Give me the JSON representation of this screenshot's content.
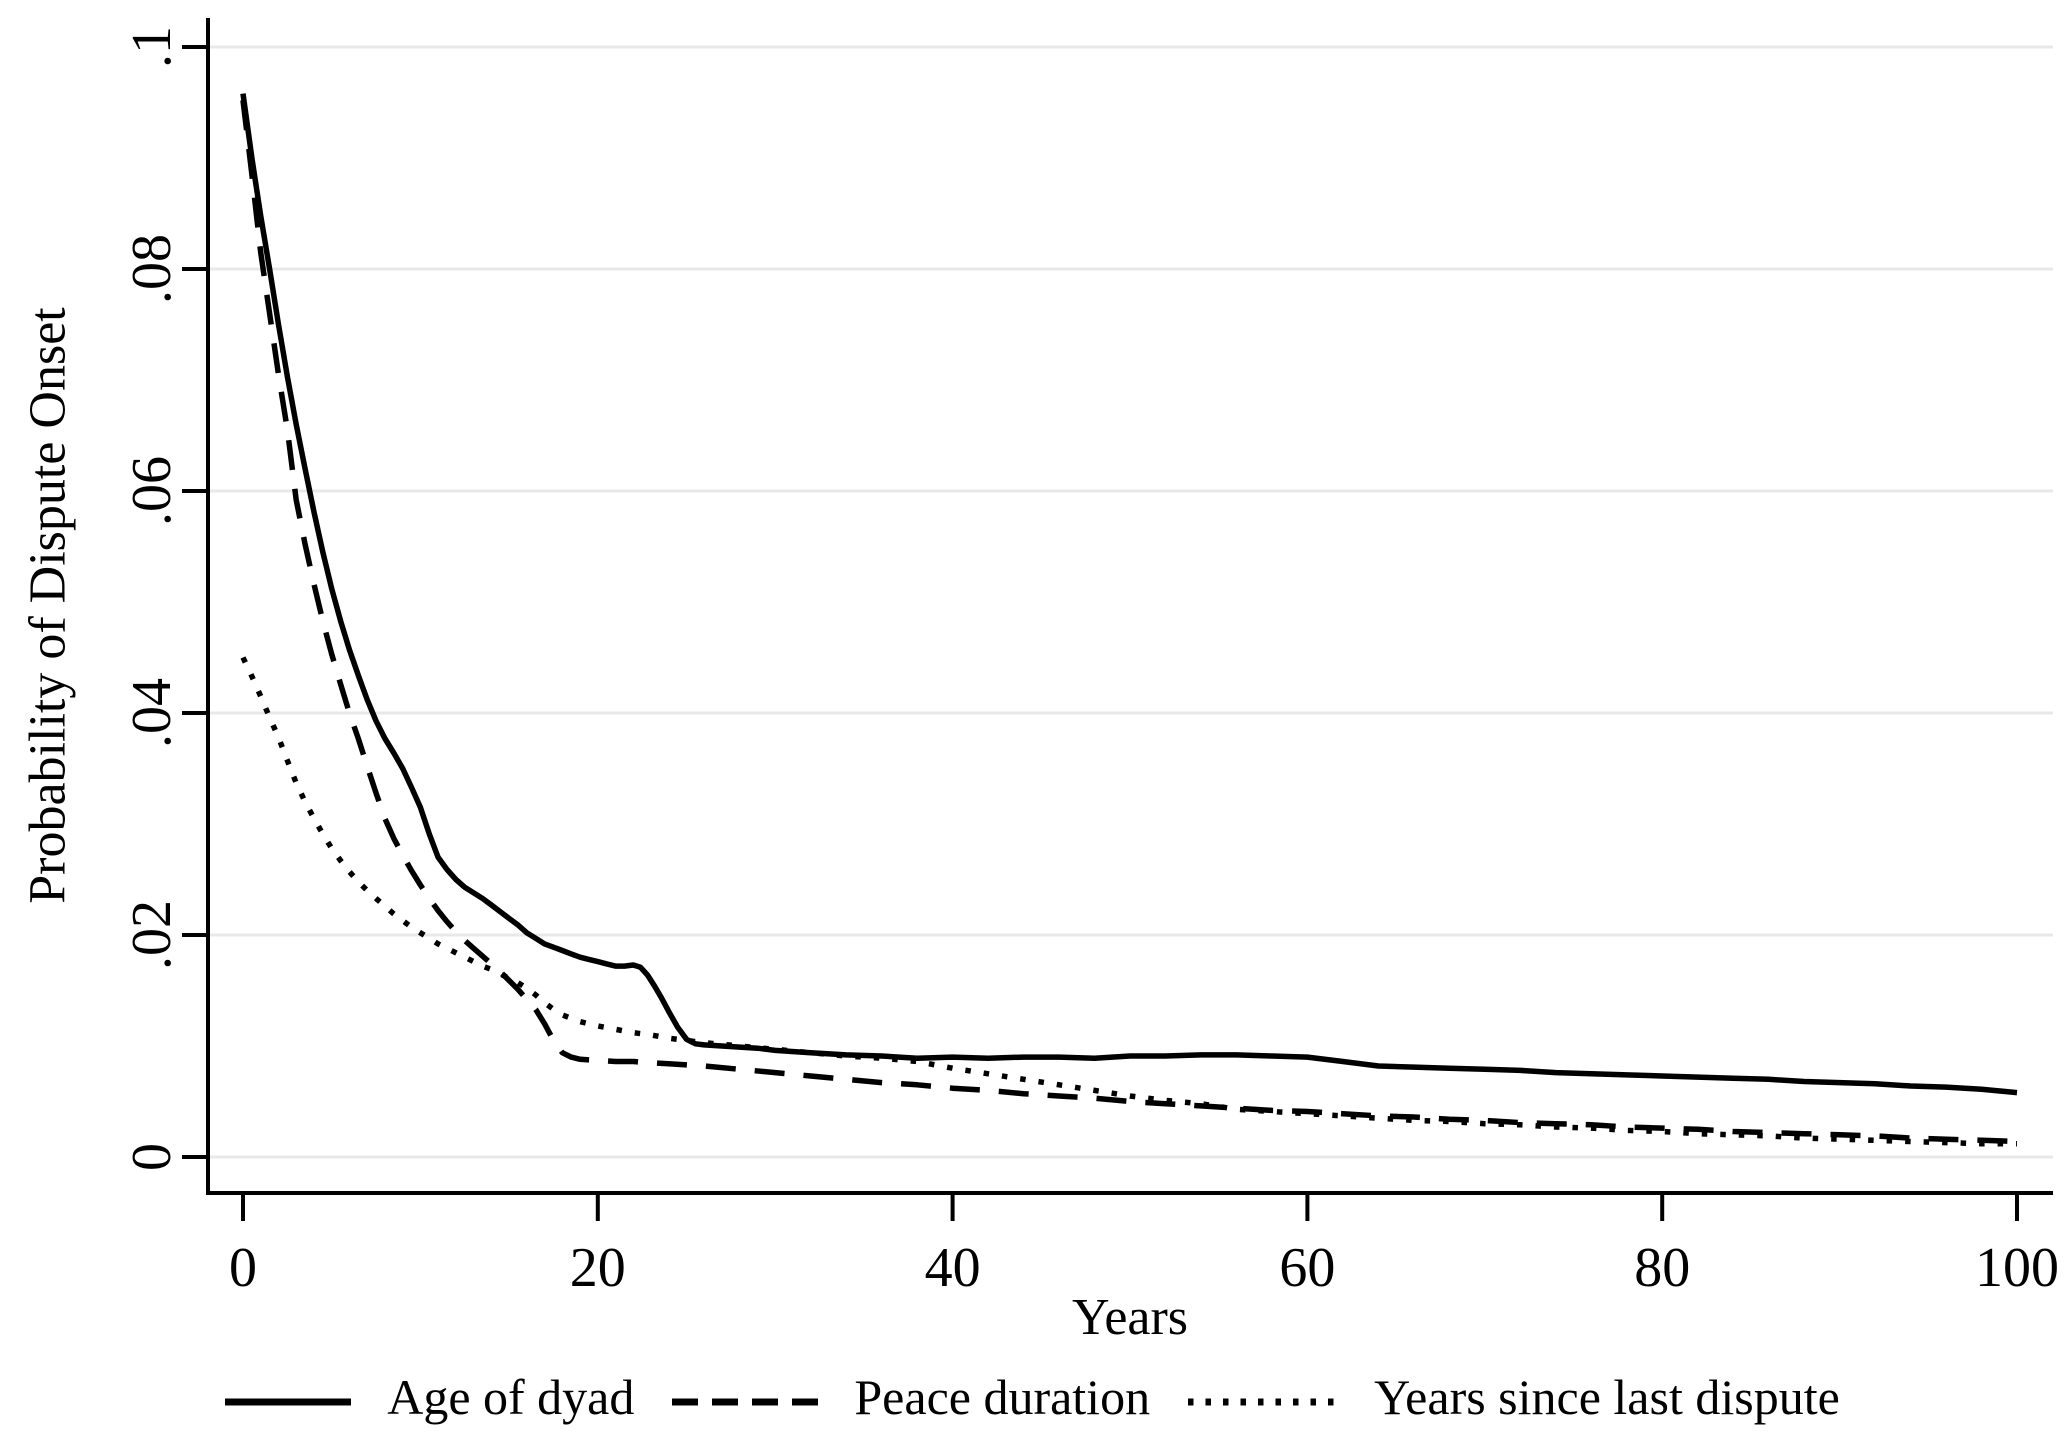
{
  "figure": {
    "background_color": "#ffffff",
    "axis_color": "#000000",
    "gridline_color": "#e8e8e8",
    "line_color": "#000000"
  },
  "chart_data": {
    "type": "line",
    "title": "",
    "xlabel": "Years",
    "ylabel": "Probability of Dispute Onset",
    "xlim": [
      0,
      100
    ],
    "ylim": [
      0,
      0.1
    ],
    "x_ticks": [
      "0",
      "20",
      "40",
      "60",
      "80",
      "100"
    ],
    "y_ticks": [
      "0",
      ".02",
      ".04",
      ".06",
      ".08",
      ".1"
    ],
    "grid": "horizontal-only",
    "frame": "left-and-bottom-axes-only",
    "y_tick_label_rotation": 90,
    "legend_position": "bottom-center",
    "series": [
      {
        "name": "Age of dyad",
        "line_style": "solid",
        "points": [
          [
            0,
            0.0958
          ],
          [
            0.5,
            0.09
          ],
          [
            1,
            0.0848
          ],
          [
            1.5,
            0.08
          ],
          [
            2,
            0.075
          ],
          [
            2.5,
            0.0703
          ],
          [
            3,
            0.066
          ],
          [
            3.5,
            0.062
          ],
          [
            4,
            0.0581
          ],
          [
            4.5,
            0.0545
          ],
          [
            5,
            0.0512
          ],
          [
            5.5,
            0.0483
          ],
          [
            6,
            0.0457
          ],
          [
            6.5,
            0.0434
          ],
          [
            7,
            0.0412
          ],
          [
            7.5,
            0.0393
          ],
          [
            8,
            0.0377
          ],
          [
            8.5,
            0.0364
          ],
          [
            9,
            0.035
          ],
          [
            9.5,
            0.0333
          ],
          [
            10,
            0.0315
          ],
          [
            10.5,
            0.0291
          ],
          [
            11,
            0.027
          ],
          [
            11.5,
            0.0259
          ],
          [
            12,
            0.025
          ],
          [
            12.5,
            0.0243
          ],
          [
            13,
            0.0238
          ],
          [
            13.5,
            0.0233
          ],
          [
            14,
            0.0227
          ],
          [
            14.5,
            0.0221
          ],
          [
            15,
            0.0215
          ],
          [
            15.5,
            0.0209
          ],
          [
            16,
            0.0202
          ],
          [
            16.5,
            0.0197
          ],
          [
            17,
            0.0192
          ],
          [
            17.5,
            0.0189
          ],
          [
            18,
            0.0186
          ],
          [
            18.5,
            0.0183
          ],
          [
            19,
            0.018
          ],
          [
            19.5,
            0.0178
          ],
          [
            20,
            0.0176
          ],
          [
            20.5,
            0.0174
          ],
          [
            21,
            0.0172
          ],
          [
            21.5,
            0.0172
          ],
          [
            22,
            0.0173
          ],
          [
            22.4,
            0.0171
          ],
          [
            22.8,
            0.0164
          ],
          [
            23.2,
            0.0154
          ],
          [
            23.6,
            0.0143
          ],
          [
            24,
            0.0131
          ],
          [
            24.5,
            0.0117
          ],
          [
            25,
            0.0106
          ],
          [
            25.5,
            0.0102
          ],
          [
            26,
            0.0101
          ],
          [
            27,
            0.01
          ],
          [
            28,
            0.0099
          ],
          [
            29,
            0.0098
          ],
          [
            30,
            0.0096
          ],
          [
            32,
            0.0094
          ],
          [
            34,
            0.0092
          ],
          [
            36,
            0.0091
          ],
          [
            38,
            0.0089
          ],
          [
            40,
            0.009
          ],
          [
            42,
            0.0089
          ],
          [
            44,
            0.009
          ],
          [
            46,
            0.009
          ],
          [
            48,
            0.0089
          ],
          [
            50,
            0.0091
          ],
          [
            52,
            0.0091
          ],
          [
            54,
            0.0092
          ],
          [
            56,
            0.0092
          ],
          [
            58,
            0.0091
          ],
          [
            60,
            0.009
          ],
          [
            62,
            0.0086
          ],
          [
            64,
            0.0082
          ],
          [
            66,
            0.0081
          ],
          [
            68,
            0.008
          ],
          [
            70,
            0.0079
          ],
          [
            72,
            0.0078
          ],
          [
            74,
            0.0076
          ],
          [
            76,
            0.0075
          ],
          [
            78,
            0.0074
          ],
          [
            80,
            0.0073
          ],
          [
            82,
            0.0072
          ],
          [
            84,
            0.0071
          ],
          [
            86,
            0.007
          ],
          [
            88,
            0.0068
          ],
          [
            90,
            0.0067
          ],
          [
            92,
            0.0066
          ],
          [
            94,
            0.0064
          ],
          [
            96,
            0.0063
          ],
          [
            98,
            0.0061
          ],
          [
            100,
            0.0058
          ]
        ]
      },
      {
        "name": "Peace duration",
        "line_style": "dashed",
        "points": [
          [
            0,
            0.0952
          ],
          [
            0.5,
            0.0885
          ],
          [
            1,
            0.0815
          ],
          [
            1.5,
            0.076
          ],
          [
            2,
            0.0705
          ],
          [
            2.5,
            0.0655
          ],
          [
            3,
            0.0592
          ],
          [
            3.5,
            0.0552
          ],
          [
            4,
            0.0516
          ],
          [
            4.5,
            0.0483
          ],
          [
            5,
            0.0453
          ],
          [
            5.5,
            0.0426
          ],
          [
            6,
            0.04
          ],
          [
            6.5,
            0.0377
          ],
          [
            7,
            0.0352
          ],
          [
            7.5,
            0.0328
          ],
          [
            8,
            0.0305
          ],
          [
            8.5,
            0.0287
          ],
          [
            9,
            0.0272
          ],
          [
            9.5,
            0.0258
          ],
          [
            10,
            0.0245
          ],
          [
            10.5,
            0.0233
          ],
          [
            11,
            0.0222
          ],
          [
            11.5,
            0.0212
          ],
          [
            12,
            0.0203
          ],
          [
            12.5,
            0.0195
          ],
          [
            13,
            0.0188
          ],
          [
            13.5,
            0.0181
          ],
          [
            14,
            0.0174
          ],
          [
            14.5,
            0.0167
          ],
          [
            15,
            0.0159
          ],
          [
            15.5,
            0.0151
          ],
          [
            16,
            0.0142
          ],
          [
            16.5,
            0.0133
          ],
          [
            17,
            0.012
          ],
          [
            17.5,
            0.0105
          ],
          [
            18,
            0.0094
          ],
          [
            18.5,
            0.009
          ],
          [
            19,
            0.0088
          ],
          [
            20,
            0.0087
          ],
          [
            21,
            0.0086
          ],
          [
            22,
            0.0086
          ],
          [
            23,
            0.0085
          ],
          [
            24,
            0.0084
          ],
          [
            25,
            0.0083
          ],
          [
            26,
            0.0082
          ],
          [
            28,
            0.0079
          ],
          [
            30,
            0.0076
          ],
          [
            32,
            0.0073
          ],
          [
            34,
            0.007
          ],
          [
            36,
            0.0067
          ],
          [
            38,
            0.0065
          ],
          [
            40,
            0.0062
          ],
          [
            42,
            0.006
          ],
          [
            44,
            0.0057
          ],
          [
            46,
            0.0055
          ],
          [
            48,
            0.0053
          ],
          [
            50,
            0.005
          ],
          [
            52,
            0.0048
          ],
          [
            54,
            0.0046
          ],
          [
            56,
            0.0044
          ],
          [
            58,
            0.0042
          ],
          [
            60,
            0.0041
          ],
          [
            62,
            0.0039
          ],
          [
            64,
            0.0037
          ],
          [
            66,
            0.0036
          ],
          [
            68,
            0.0034
          ],
          [
            70,
            0.0033
          ],
          [
            72,
            0.0031
          ],
          [
            74,
            0.003
          ],
          [
            76,
            0.0029
          ],
          [
            78,
            0.0027
          ],
          [
            80,
            0.0026
          ],
          [
            82,
            0.0025
          ],
          [
            84,
            0.0023
          ],
          [
            86,
            0.0022
          ],
          [
            88,
            0.0021
          ],
          [
            90,
            0.002
          ],
          [
            92,
            0.0019
          ],
          [
            94,
            0.0017
          ],
          [
            96,
            0.0016
          ],
          [
            98,
            0.0015
          ],
          [
            100,
            0.0014
          ]
        ]
      },
      {
        "name": "Years since last dispute",
        "line_style": "dotted",
        "points": [
          [
            0,
            0.045
          ],
          [
            0.5,
            0.0433
          ],
          [
            1,
            0.0415
          ],
          [
            1.5,
            0.0396
          ],
          [
            2,
            0.0378
          ],
          [
            2.5,
            0.0357
          ],
          [
            3,
            0.0337
          ],
          [
            3.5,
            0.032
          ],
          [
            4,
            0.0305
          ],
          [
            4.5,
            0.0291
          ],
          [
            5,
            0.0278
          ],
          [
            5.5,
            0.0267
          ],
          [
            6,
            0.0257
          ],
          [
            6.5,
            0.0248
          ],
          [
            7,
            0.024
          ],
          [
            7.5,
            0.0233
          ],
          [
            8,
            0.0226
          ],
          [
            8.5,
            0.0219
          ],
          [
            9,
            0.0213
          ],
          [
            9.5,
            0.0207
          ],
          [
            10,
            0.0202
          ],
          [
            10.5,
            0.0197
          ],
          [
            11,
            0.0192
          ],
          [
            11.5,
            0.0188
          ],
          [
            12,
            0.0184
          ],
          [
            12.5,
            0.018
          ],
          [
            13,
            0.0176
          ],
          [
            13.5,
            0.0172
          ],
          [
            14,
            0.0169
          ],
          [
            14.5,
            0.0165
          ],
          [
            15,
            0.0161
          ],
          [
            15.5,
            0.0157
          ],
          [
            16,
            0.0152
          ],
          [
            16.5,
            0.0146
          ],
          [
            17,
            0.0139
          ],
          [
            17.5,
            0.0133
          ],
          [
            18,
            0.0128
          ],
          [
            18.5,
            0.0125
          ],
          [
            19,
            0.0122
          ],
          [
            19.5,
            0.012
          ],
          [
            20,
            0.0118
          ],
          [
            21,
            0.0115
          ],
          [
            22,
            0.0112
          ],
          [
            23,
            0.011
          ],
          [
            24,
            0.0107
          ],
          [
            25,
            0.0105
          ],
          [
            26,
            0.0103
          ],
          [
            28,
            0.01
          ],
          [
            30,
            0.0097
          ],
          [
            32,
            0.0094
          ],
          [
            34,
            0.0091
          ],
          [
            36,
            0.0089
          ],
          [
            38,
            0.0086
          ],
          [
            40,
            0.008
          ],
          [
            42,
            0.0075
          ],
          [
            44,
            0.007
          ],
          [
            46,
            0.0065
          ],
          [
            48,
            0.006
          ],
          [
            50,
            0.0055
          ],
          [
            52,
            0.0051
          ],
          [
            54,
            0.0048
          ],
          [
            56,
            0.0043
          ],
          [
            58,
            0.0041
          ],
          [
            60,
            0.0039
          ],
          [
            62,
            0.0037
          ],
          [
            64,
            0.0035
          ],
          [
            66,
            0.0033
          ],
          [
            68,
            0.0032
          ],
          [
            70,
            0.003
          ],
          [
            72,
            0.0029
          ],
          [
            74,
            0.0027
          ],
          [
            76,
            0.0026
          ],
          [
            78,
            0.0024
          ],
          [
            80,
            0.0023
          ],
          [
            82,
            0.0021
          ],
          [
            84,
            0.002
          ],
          [
            86,
            0.0019
          ],
          [
            88,
            0.0017
          ],
          [
            90,
            0.0016
          ],
          [
            92,
            0.0015
          ],
          [
            94,
            0.0014
          ],
          [
            96,
            0.0013
          ],
          [
            98,
            0.0012
          ],
          [
            100,
            0.0012
          ]
        ]
      }
    ]
  }
}
